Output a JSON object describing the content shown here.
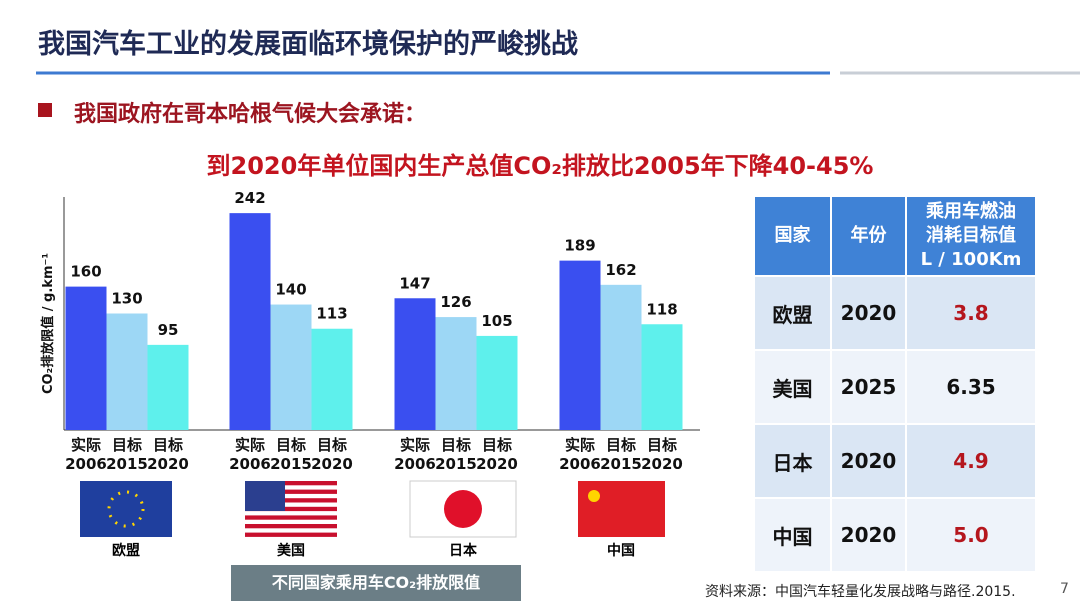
{
  "header": {
    "title": "我国汽车工业的发展面临环境保护的严峻挑战",
    "bullet": "我国政府在哥本哈根气候大会承诺：",
    "subheading": "到2020年单位国内生产总值CO₂排放比2005年下降40-45%"
  },
  "chart_data": {
    "type": "bar",
    "y_label": "CO₂排放限值 / g.km⁻¹",
    "categories": [
      "欧盟",
      "美国",
      "日本",
      "中国"
    ],
    "series": [
      {
        "name": "实际 2006",
        "color": "#3a4ff0",
        "values": [
          160,
          242,
          147,
          189
        ]
      },
      {
        "name": "目标 2015",
        "color": "#9dd7f5",
        "values": [
          130,
          140,
          126,
          162
        ]
      },
      {
        "name": "目标 2020",
        "color": "#5ef0ec",
        "values": [
          95,
          113,
          105,
          118
        ]
      }
    ],
    "ylim": [
      0,
      260
    ],
    "caption": "不同国家乘用车CO₂排放限值"
  },
  "table": {
    "header": [
      "国家",
      "年份",
      [
        "乘用车燃油",
        "消耗目标值",
        "L / 100Km"
      ]
    ],
    "rows": [
      [
        "欧盟",
        "2020",
        "3.8"
      ],
      [
        "美国",
        "2025",
        "6.35"
      ],
      [
        "日本",
        "2020",
        "4.9"
      ],
      [
        "中国",
        "2020",
        "5.0"
      ]
    ]
  },
  "footer": {
    "source": "资料来源：中国汽车轻量化发展战略与路径.2015.",
    "page": "7"
  }
}
